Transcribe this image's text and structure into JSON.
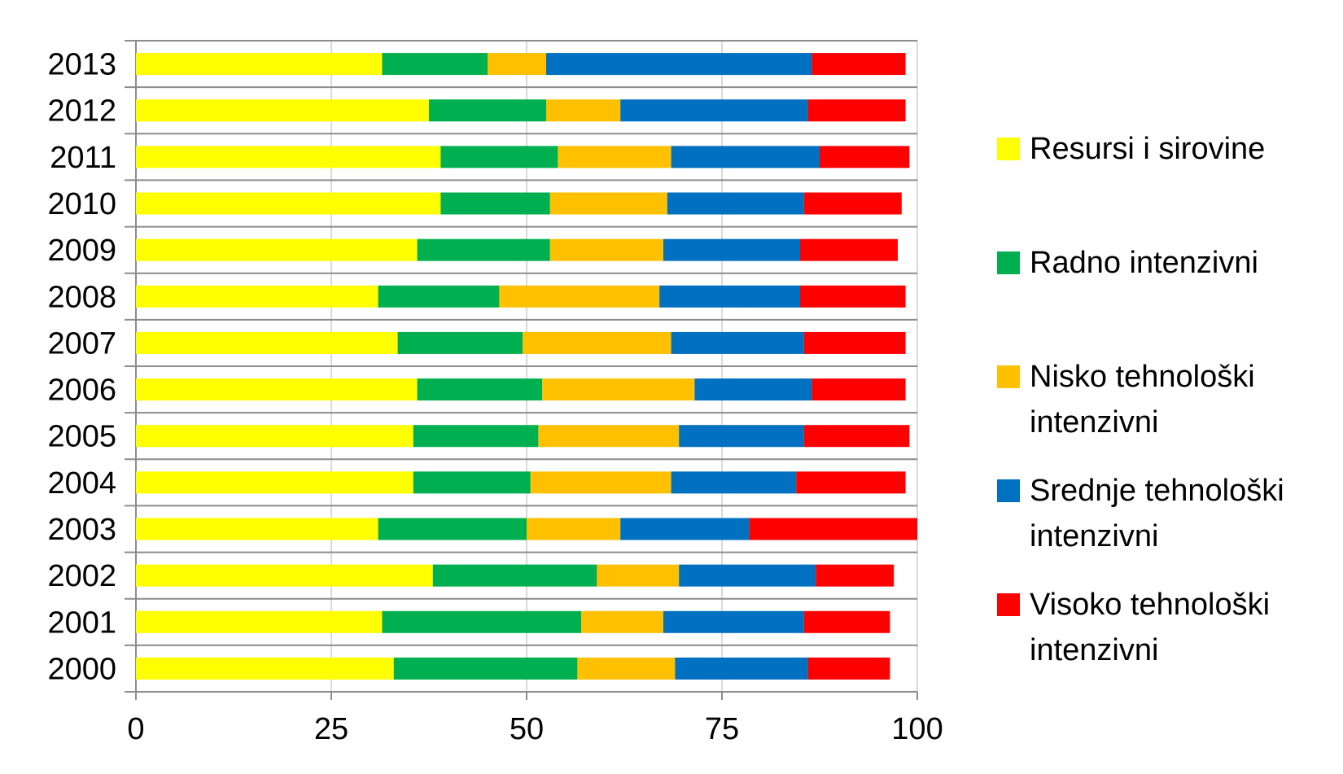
{
  "chart_data": {
    "type": "bar",
    "orientation": "horizontal",
    "stacked": true,
    "categories": [
      "2013",
      "2012",
      "2011",
      "2010",
      "2009",
      "2008",
      "2007",
      "2006",
      "2005",
      "2004",
      "2003",
      "2002",
      "2001",
      "2000"
    ],
    "series": [
      {
        "name": "Resursi i sirovine",
        "color": "#FFFF00",
        "values": [
          31.5,
          37.5,
          39,
          39,
          36,
          31,
          33.5,
          36,
          35.5,
          35.5,
          31,
          38,
          31.5,
          33
        ]
      },
      {
        "name": "Radno intenzivni",
        "color": "#00B050",
        "values": [
          13.5,
          15,
          15,
          14,
          17,
          15.5,
          16,
          16,
          16,
          15,
          19,
          21,
          25.5,
          23.5
        ]
      },
      {
        "name": "Nisko tehnološki intenzivni",
        "color": "#FFC000",
        "values": [
          7.5,
          9.5,
          14.5,
          15,
          14.5,
          20.5,
          19,
          19.5,
          18,
          18,
          12,
          10.5,
          10.5,
          12.5
        ]
      },
      {
        "name": "Srednje tehnološki intenzivni",
        "color": "#0070C0",
        "values": [
          34,
          24,
          19,
          17.5,
          17.5,
          18,
          17,
          15,
          16,
          16,
          16.5,
          17.5,
          18,
          17
        ]
      },
      {
        "name": "Visoko tehnološki intenzivni",
        "color": "#FF0000",
        "values": [
          12,
          12.5,
          11.5,
          12.5,
          12.5,
          13.5,
          13,
          12,
          13.5,
          14,
          21.5,
          10,
          11,
          10.5
        ]
      }
    ],
    "xticks": [
      "0",
      "25",
      "50",
      "75",
      "100"
    ],
    "xlim": [
      0,
      100
    ],
    "grid": true,
    "legend_position": "right",
    "legend_labels": [
      "Resursi i sirovine",
      "Radno intenzivni",
      "Nisko tehnološki intenzivni",
      "Srednje tehnološki intenzivni",
      "Visoko tehnološki intenzivni"
    ]
  }
}
